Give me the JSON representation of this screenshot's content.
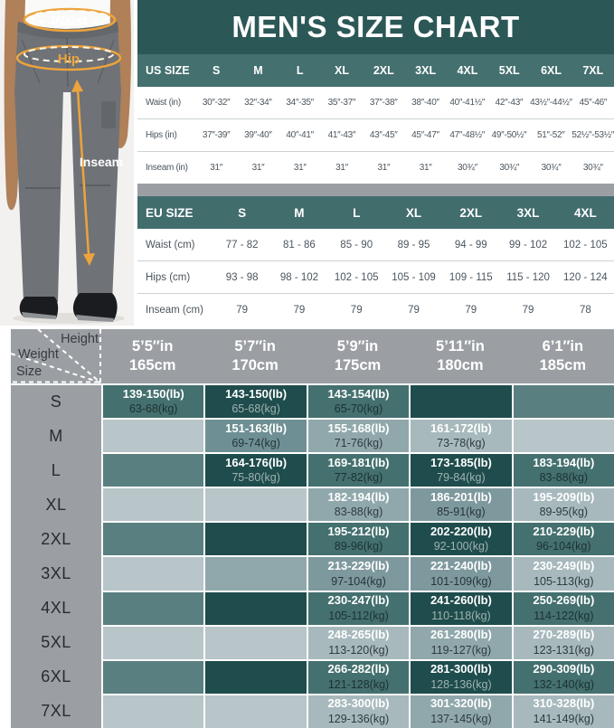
{
  "title": "MEN'S SIZE CHART",
  "photo": {
    "waist_label": "Waist",
    "hip_label": "Hip",
    "inseam_label": "Inseam",
    "annotation_color": "#EDA43C"
  },
  "theme": {
    "title_band": "#2C5757",
    "table_header_band": "#44706F",
    "matrix_header_gray": "#9B9FA4"
  },
  "us_table": {
    "header_label": "US SIZE",
    "sizes": [
      "S",
      "M",
      "L",
      "XL",
      "2XL",
      "3XL",
      "4XL",
      "5XL",
      "6XL",
      "7XL"
    ],
    "rows": [
      {
        "label": "Waist (in)",
        "values": [
          "30″-32″",
          "32″-34″",
          "34″-35″",
          "35″-37″",
          "37″-38″",
          "38″-40″",
          "40″-41½″",
          "42″-43″",
          "43½″-44½″",
          "45″-46″"
        ]
      },
      {
        "label": "Hips (in)",
        "values": [
          "37″-39″",
          "39″-40″",
          "40″-41″",
          "41″-43″",
          "43″-45″",
          "45″-47″",
          "47″-48½″",
          "49″-50½″",
          "51″-52″",
          "52½″-53½″"
        ]
      },
      {
        "label": "Inseam (in)",
        "values": [
          "31″",
          "31″",
          "31″",
          "31″",
          "31″",
          "31″",
          "30¾″",
          "30¾″",
          "30¾″",
          "30¾″"
        ]
      }
    ]
  },
  "eu_table": {
    "header_label": "EU SIZE",
    "sizes": [
      "S",
      "M",
      "L",
      "XL",
      "2XL",
      "3XL",
      "4XL"
    ],
    "rows": [
      {
        "label": "Waist (cm)",
        "values": [
          "77 - 82",
          "81 - 86",
          "85 - 90",
          "89 - 95",
          "94 - 99",
          "99 - 102",
          "102 - 105"
        ]
      },
      {
        "label": "Hips (cm)",
        "values": [
          "93 - 98",
          "98 - 102",
          "102 - 105",
          "105 - 109",
          "109 - 115",
          "115 - 120",
          "120 - 124"
        ]
      },
      {
        "label": "Inseam (cm)",
        "values": [
          "79",
          "79",
          "79",
          "79",
          "79",
          "79",
          "78"
        ]
      }
    ]
  },
  "matrix": {
    "corner": {
      "height_label": "Height",
      "weight_label": "Weight",
      "size_label": "Size"
    },
    "heights": [
      {
        "ft": "5’5″in",
        "cm": "165cm"
      },
      {
        "ft": "5’7″in",
        "cm": "170cm"
      },
      {
        "ft": "5’9″in",
        "cm": "175cm"
      },
      {
        "ft": "5’11″in",
        "cm": "180cm"
      },
      {
        "ft": "6’1″in",
        "cm": "185cm"
      }
    ],
    "tones": {
      "d": "#1F4C4C",
      "t": "#44706F",
      "t2": "#5A7F80",
      "m3": "#6E9094",
      "m2": "#7E999E",
      "m": "#90A8AC",
      "l2": "#A7B9BD",
      "l": "#B8C5C9"
    },
    "rows": [
      {
        "size": "S",
        "cells": [
          {
            "tone": "t",
            "lb": "139-150(lb)",
            "kg": "63-68(kg)"
          },
          {
            "tone": "d",
            "lb": "143-150(lb)",
            "kg": "65-68(kg)"
          },
          {
            "tone": "t",
            "lb": "143-154(lb)",
            "kg": "65-70(kg)"
          },
          {
            "tone": "d"
          },
          {
            "tone": "t2"
          }
        ]
      },
      {
        "size": "M",
        "cells": [
          {
            "tone": "l"
          },
          {
            "tone": "m3",
            "lb": "151-163(lb)",
            "kg": "69-74(kg)"
          },
          {
            "tone": "m",
            "lb": "155-168(lb)",
            "kg": "71-76(kg)"
          },
          {
            "tone": "l2",
            "lb": "161-172(lb)",
            "kg": "73-78(kg)"
          },
          {
            "tone": "l"
          }
        ]
      },
      {
        "size": "L",
        "cells": [
          {
            "tone": "t2"
          },
          {
            "tone": "d",
            "lb": "164-176(lb)",
            "kg": "75-80(kg)"
          },
          {
            "tone": "t",
            "lb": "169-181(lb)",
            "kg": "77-82(kg)"
          },
          {
            "tone": "d",
            "lb": "173-185(lb)",
            "kg": "79-84(kg)"
          },
          {
            "tone": "t",
            "lb": "183-194(lb)",
            "kg": "83-88(kg)"
          }
        ]
      },
      {
        "size": "XL",
        "cells": [
          {
            "tone": "l"
          },
          {
            "tone": "l"
          },
          {
            "tone": "m",
            "lb": "182-194(lb)",
            "kg": "83-88(kg)"
          },
          {
            "tone": "m2",
            "lb": "186-201(lb)",
            "kg": "85-91(kg)"
          },
          {
            "tone": "l2",
            "lb": "195-209(lb)",
            "kg": "89-95(kg)"
          }
        ]
      },
      {
        "size": "2XL",
        "cells": [
          {
            "tone": "t2"
          },
          {
            "tone": "d"
          },
          {
            "tone": "t",
            "lb": "195-212(lb)",
            "kg": "89-96(kg)"
          },
          {
            "tone": "d",
            "lb": "202-220(lb)",
            "kg": "92-100(kg)"
          },
          {
            "tone": "t",
            "lb": "210-229(lb)",
            "kg": "96-104(kg)"
          }
        ]
      },
      {
        "size": "3XL",
        "cells": [
          {
            "tone": "l"
          },
          {
            "tone": "m"
          },
          {
            "tone": "m2",
            "lb": "213-229(lb)",
            "kg": "97-104(kg)"
          },
          {
            "tone": "m2",
            "lb": "221-240(lb)",
            "kg": "101-109(kg)"
          },
          {
            "tone": "l2",
            "lb": "230-249(lb)",
            "kg": "105-113(kg)"
          }
        ]
      },
      {
        "size": "4XL",
        "cells": [
          {
            "tone": "t2"
          },
          {
            "tone": "d"
          },
          {
            "tone": "t",
            "lb": "230-247(lb)",
            "kg": "105-112(kg)"
          },
          {
            "tone": "d",
            "lb": "241-260(lb)",
            "kg": "110-118(kg)"
          },
          {
            "tone": "t",
            "lb": "250-269(lb)",
            "kg": "114-122(kg)"
          }
        ]
      },
      {
        "size": "5XL",
        "cells": [
          {
            "tone": "l"
          },
          {
            "tone": "l"
          },
          {
            "tone": "l2",
            "lb": "248-265(lb)",
            "kg": "113-120(kg)"
          },
          {
            "tone": "m",
            "lb": "261-280(lb)",
            "kg": "119-127(kg)"
          },
          {
            "tone": "l2",
            "lb": "270-289(lb)",
            "kg": "123-131(kg)"
          }
        ]
      },
      {
        "size": "6XL",
        "cells": [
          {
            "tone": "t2"
          },
          {
            "tone": "d"
          },
          {
            "tone": "t",
            "lb": "266-282(lb)",
            "kg": "121-128(kg)"
          },
          {
            "tone": "d",
            "lb": "281-300(lb)",
            "kg": "128-136(kg)"
          },
          {
            "tone": "t",
            "lb": "290-309(lb)",
            "kg": "132-140(kg)"
          }
        ]
      },
      {
        "size": "7XL",
        "cells": [
          {
            "tone": "l"
          },
          {
            "tone": "l"
          },
          {
            "tone": "l2",
            "lb": "283-300(lb)",
            "kg": "129-136(kg)"
          },
          {
            "tone": "m",
            "lb": "301-320(lb)",
            "kg": "137-145(kg)"
          },
          {
            "tone": "l2",
            "lb": "310-328(lb)",
            "kg": "141-149(kg)"
          }
        ]
      }
    ]
  }
}
